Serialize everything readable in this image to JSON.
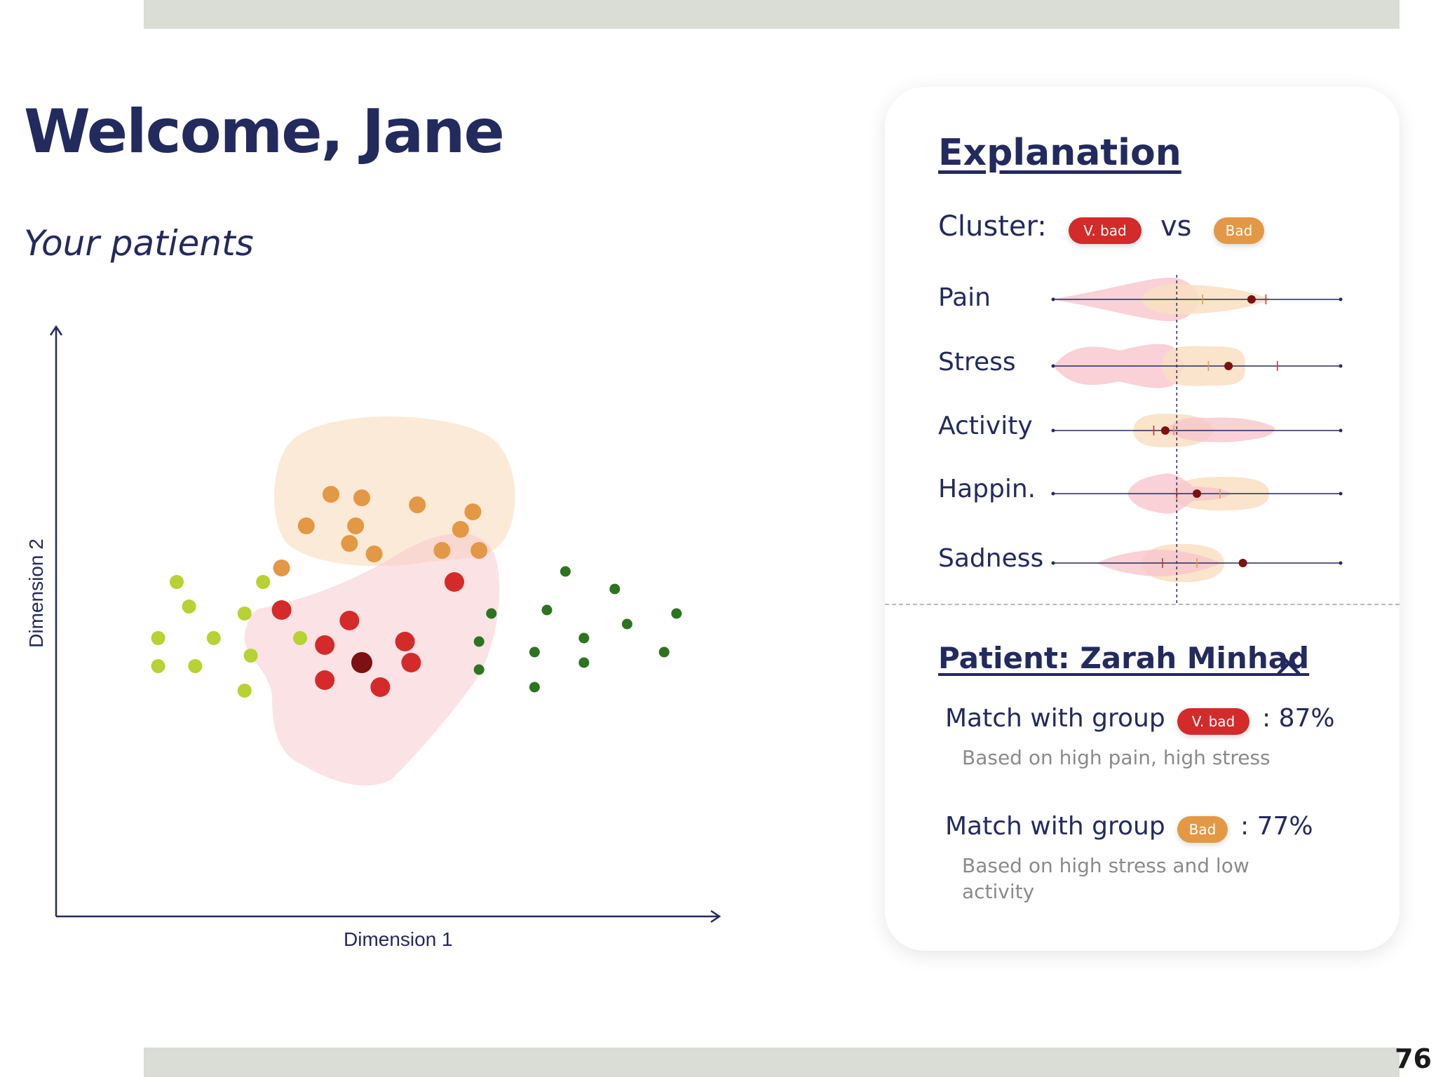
{
  "header": {
    "welcome": "Welcome, Jane",
    "subtitle": "Your patients"
  },
  "page_number": "76",
  "colors": {
    "vbad": "#d42a2a",
    "vbad_light": "#f7c6cc",
    "bad": "#e39845",
    "bad_light": "#f9dfc2",
    "lime": "#b8d133",
    "dark_green": "#2e7320",
    "highlight": "#7d1010",
    "navy": "#232a5e"
  },
  "chart_data": {
    "type": "scatter",
    "xlabel": "Dimension 1",
    "ylabel": "Dimension 2",
    "xlim": [
      0,
      100
    ],
    "ylim": [
      0,
      100
    ],
    "series": [
      {
        "name": "Bad",
        "role": "bad",
        "points": [
          [
            40,
            81
          ],
          [
            45,
            80
          ],
          [
            54,
            78
          ],
          [
            63,
            76
          ],
          [
            36,
            72
          ],
          [
            44,
            72
          ],
          [
            61,
            71
          ],
          [
            32,
            60
          ],
          [
            43,
            67
          ],
          [
            47,
            64
          ],
          [
            58,
            65
          ],
          [
            64,
            65
          ]
        ]
      },
      {
        "name": "V. bad",
        "role": "vbad",
        "points": [
          [
            60,
            56
          ],
          [
            32,
            48
          ],
          [
            43,
            45
          ],
          [
            52,
            39
          ],
          [
            39,
            38
          ],
          [
            53,
            33
          ],
          [
            39,
            28
          ],
          [
            48,
            26
          ]
        ]
      },
      {
        "name": "",
        "role": "lime",
        "points": [
          [
            15,
            56
          ],
          [
            29,
            56
          ],
          [
            17,
            49
          ],
          [
            26,
            47
          ],
          [
            12,
            40
          ],
          [
            21,
            40
          ],
          [
            35,
            40
          ],
          [
            12,
            32
          ],
          [
            18,
            32
          ],
          [
            27,
            35
          ],
          [
            26,
            25
          ]
        ]
      },
      {
        "name": "",
        "role": "dark_green",
        "points": [
          [
            78,
            59
          ],
          [
            86,
            54
          ],
          [
            66,
            47
          ],
          [
            75,
            48
          ],
          [
            96,
            47
          ],
          [
            88,
            44
          ],
          [
            81,
            40
          ],
          [
            64,
            39
          ],
          [
            73,
            36
          ],
          [
            94,
            36
          ],
          [
            81,
            33
          ],
          [
            64,
            31
          ],
          [
            73,
            26
          ]
        ]
      }
    ],
    "highlight_point": {
      "series": "V. bad",
      "point": [
        45,
        33
      ]
    }
  },
  "explanation": {
    "title": "Explanation",
    "cluster_label": "Cluster:",
    "vs_label": "vs",
    "group_a": "V. bad",
    "group_b": "Bad",
    "features": [
      {
        "label": "Pain",
        "patient": 0.69,
        "mean_a": 0.74,
        "mean_b": 0.52
      },
      {
        "label": "Stress",
        "patient": 0.61,
        "mean_a": 0.78,
        "mean_b": 0.54
      },
      {
        "label": "Activity",
        "patient": 0.39,
        "mean_a": 0.35,
        "mean_b": 0.42
      },
      {
        "label": "Happin.",
        "patient": 0.5,
        "mean_a": 0.43,
        "mean_b": 0.58
      },
      {
        "label": "Sadness",
        "patient": 0.66,
        "mean_a": 0.38,
        "mean_b": 0.5
      }
    ],
    "reference_value": 0.43
  },
  "patient": {
    "title": "Patient: Zarah Minhad",
    "matches": [
      {
        "label": "Match with group",
        "group": "V. bad",
        "value": ": 87%",
        "description": "Based on high pain, high stress"
      },
      {
        "label": "Match with group",
        "group": "Bad",
        "value": ": 77%",
        "description": "Based on high stress and low activity"
      }
    ]
  }
}
